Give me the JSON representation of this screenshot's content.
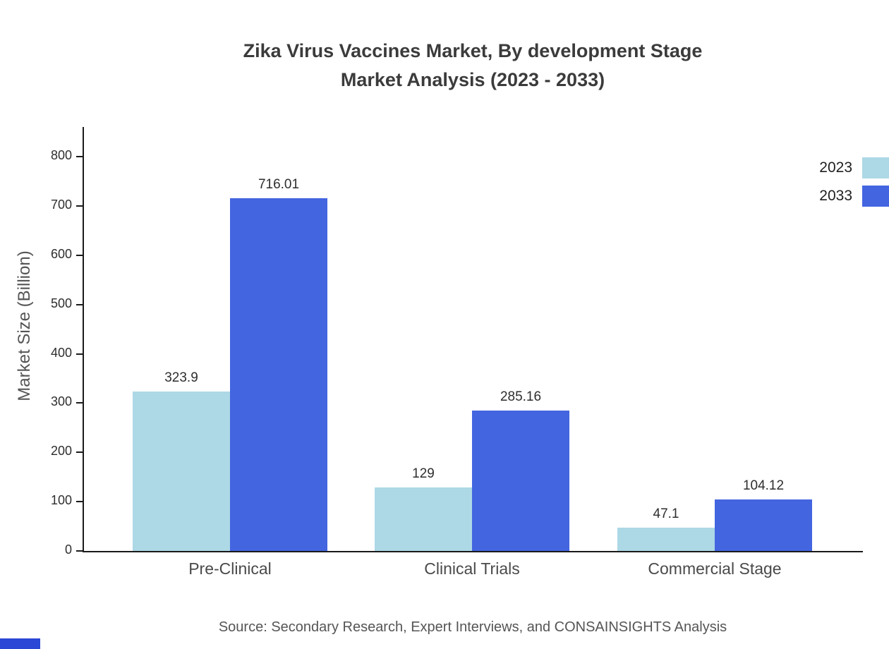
{
  "chart_data": {
    "type": "bar",
    "title": "Zika Virus Vaccines Market, By development Stage Market Analysis (2023 - 2033)",
    "title_lines": [
      "Zika Virus Vaccines Market, By development Stage",
      "Market Analysis (2023 - 2033)"
    ],
    "ylabel": "Market Size (Billion)",
    "xlabel": "",
    "categories": [
      "Pre-Clinical",
      "Clinical Trials",
      "Commercial Stage"
    ],
    "series": [
      {
        "name": "2023",
        "color": "#add8e6",
        "values": [
          323.9,
          129,
          47.1
        ],
        "labels": [
          "323.9",
          "129",
          "47.1"
        ]
      },
      {
        "name": "2033",
        "color": "#4365e0",
        "values": [
          716.01,
          285.16,
          104.12
        ],
        "labels": [
          "716.01",
          "285.16",
          "104.12"
        ]
      }
    ],
    "ylim": [
      0,
      860
    ],
    "yticks": [
      0,
      100,
      200,
      300,
      400,
      500,
      600,
      700,
      800
    ],
    "grid": false,
    "legend_position": "top-right",
    "source": "Source: Secondary Research, Expert Interviews, and CONSAINSIGHTS Analysis"
  }
}
